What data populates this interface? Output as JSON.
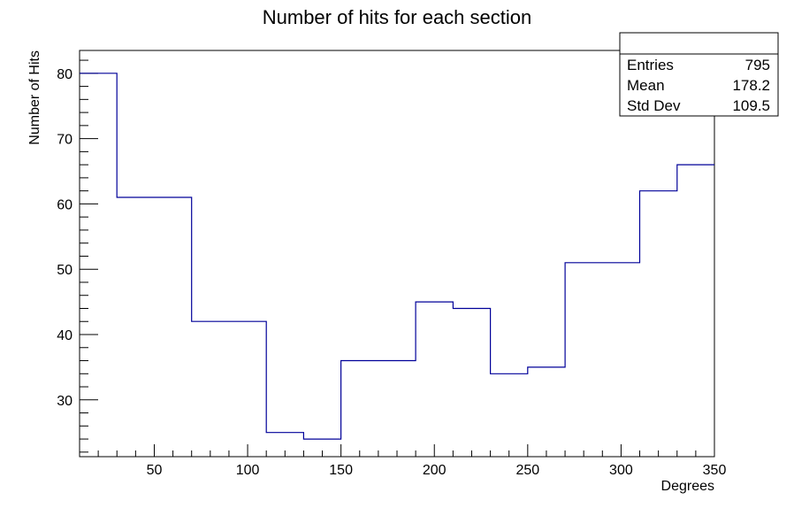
{
  "chart_data": {
    "type": "histogram",
    "title": "Number of hits for each section",
    "xlabel": "Degrees",
    "ylabel": "Number of Hits",
    "xlim": [
      10,
      350
    ],
    "ylim": [
      21.3,
      83.5
    ],
    "line_color": "#000099",
    "bins": [
      {
        "x0": 10,
        "x1": 30,
        "value": 80
      },
      {
        "x0": 30,
        "x1": 70,
        "value": 61
      },
      {
        "x0": 70,
        "x1": 110,
        "value": 42
      },
      {
        "x0": 110,
        "x1": 130,
        "value": 25
      },
      {
        "x0": 130,
        "x1": 150,
        "value": 24
      },
      {
        "x0": 150,
        "x1": 190,
        "value": 36
      },
      {
        "x0": 190,
        "x1": 210,
        "value": 45
      },
      {
        "x0": 210,
        "x1": 230,
        "value": 44
      },
      {
        "x0": 230,
        "x1": 250,
        "value": 34
      },
      {
        "x0": 250,
        "x1": 270,
        "value": 35
      },
      {
        "x0": 270,
        "x1": 310,
        "value": 51
      },
      {
        "x0": 310,
        "x1": 330,
        "value": 62
      },
      {
        "x0": 330,
        "x1": 350,
        "value": 66
      }
    ],
    "x_ticks": [
      {
        "value": 50,
        "label": "50"
      },
      {
        "value": 100,
        "label": "100"
      },
      {
        "value": 150,
        "label": "150"
      },
      {
        "value": 200,
        "label": "200"
      },
      {
        "value": 250,
        "label": "250"
      },
      {
        "value": 300,
        "label": "300"
      },
      {
        "value": 350,
        "label": "350"
      }
    ],
    "y_ticks": [
      {
        "value": 30,
        "label": "30"
      },
      {
        "value": 40,
        "label": "40"
      },
      {
        "value": 50,
        "label": "50"
      },
      {
        "value": 60,
        "label": "60"
      },
      {
        "value": 70,
        "label": "70"
      },
      {
        "value": 80,
        "label": "80"
      }
    ],
    "stats": {
      "entries_label": "Entries",
      "entries_value": "795",
      "mean_label": "Mean",
      "mean_value": "178.2",
      "stddev_label": "Std Dev",
      "stddev_value": "109.5"
    }
  }
}
